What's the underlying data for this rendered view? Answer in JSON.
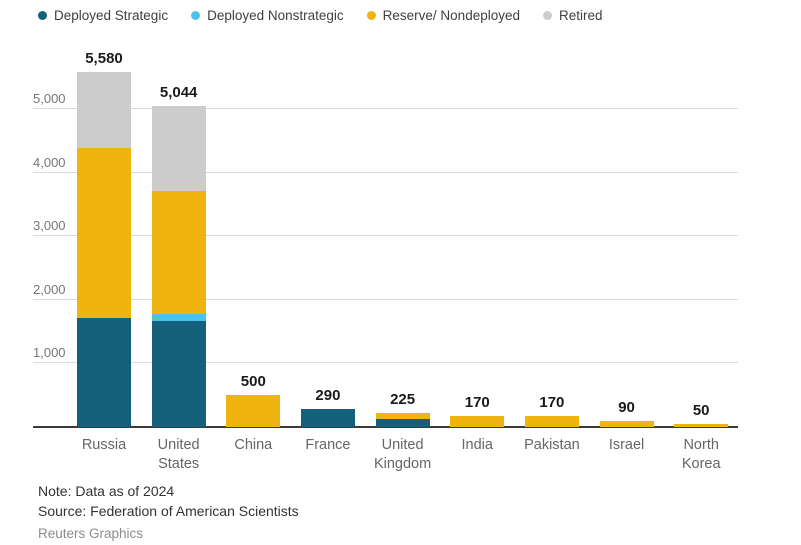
{
  "chart_data": {
    "type": "bar",
    "stacked": true,
    "title": "",
    "xlabel": "",
    "ylabel": "",
    "categories": [
      "Russia",
      "United\nStates",
      "China",
      "France",
      "United\nKingdom",
      "India",
      "Pakistan",
      "Israel",
      "North\nKorea"
    ],
    "series": [
      {
        "name": "Deployed Strategic",
        "color": "#14607a",
        "values": [
          1710,
          1670,
          0,
          290,
          120,
          0,
          0,
          0,
          0
        ]
      },
      {
        "name": "Deployed Nonstrategic",
        "color": "#4fc2e9",
        "values": [
          0,
          100,
          0,
          0,
          0,
          0,
          0,
          0,
          0
        ]
      },
      {
        "name": "Reserve/ Nondeployed",
        "color": "#f0b411",
        "values": [
          2670,
          1938,
          500,
          0,
          105,
          170,
          170,
          90,
          50
        ]
      },
      {
        "name": "Retired",
        "color": "#cccccc",
        "values": [
          1200,
          1336,
          0,
          0,
          0,
          0,
          0,
          0,
          0
        ]
      }
    ],
    "total_labels": [
      "5,580",
      "5,044",
      "500",
      "290",
      "225",
      "170",
      "170",
      "90",
      "50"
    ],
    "y_ticks": [
      {
        "value": 1000,
        "label": "1,000"
      },
      {
        "value": 2000,
        "label": "2,000"
      },
      {
        "value": 3000,
        "label": "3,000"
      },
      {
        "value": 4000,
        "label": "4,000"
      },
      {
        "value": 5000,
        "label": "5,000"
      }
    ],
    "ylim": [
      0,
      5580
    ],
    "grid": true,
    "legend_position": "top",
    "axis_color": "#3a3a3a",
    "gridline_color": "#dcdcdc"
  },
  "notes": {
    "note": "Note: Data as of 2024",
    "source": "Source: Federation of American Scientists",
    "credit": "Reuters Graphics"
  }
}
